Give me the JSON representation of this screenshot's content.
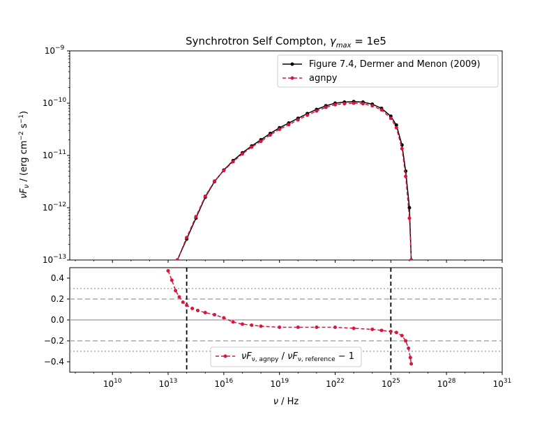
{
  "chart_data": {
    "type": "line",
    "title": "Synchrotron Self Compton, γ_max = 1e5",
    "xlabel": "ν / Hz",
    "xscale": "log",
    "xlim_exponent": [
      7.7,
      31
    ],
    "x_tick_exponents": [
      10,
      13,
      16,
      19,
      22,
      25,
      28,
      31
    ],
    "top": {
      "ylabel": "νF_ν / (erg cm⁻² s⁻¹)",
      "yscale": "log",
      "ylim_exponent": [
        -13,
        -9
      ],
      "y_tick_exponents": [
        -13,
        -12,
        -11,
        -10,
        -9
      ],
      "legend_location": "upper right",
      "series": [
        {
          "name": "Figure 7.4, Dermer and Menon (2009)",
          "color": "#000000",
          "marker": "circle",
          "linestyle": "solid",
          "points_log10": [
            [
              13.5,
              -13.0
            ],
            [
              14.0,
              -12.6
            ],
            [
              14.5,
              -12.2
            ],
            [
              15.0,
              -11.8
            ],
            [
              15.5,
              -11.5
            ],
            [
              16.0,
              -11.28
            ],
            [
              16.5,
              -11.1
            ],
            [
              17.0,
              -10.95
            ],
            [
              17.5,
              -10.82
            ],
            [
              18.0,
              -10.7
            ],
            [
              18.5,
              -10.58
            ],
            [
              19.0,
              -10.47
            ],
            [
              19.5,
              -10.38
            ],
            [
              20.0,
              -10.29
            ],
            [
              20.5,
              -10.2
            ],
            [
              21.0,
              -10.12
            ],
            [
              21.5,
              -10.05
            ],
            [
              22.0,
              -10.0
            ],
            [
              22.5,
              -9.98
            ],
            [
              23.0,
              -9.97
            ],
            [
              23.5,
              -9.98
            ],
            [
              24.0,
              -10.02
            ],
            [
              24.5,
              -10.1
            ],
            [
              25.0,
              -10.25
            ],
            [
              25.3,
              -10.42
            ],
            [
              25.6,
              -10.8
            ],
            [
              25.8,
              -11.3
            ],
            [
              26.0,
              -12.0
            ],
            [
              26.1,
              -13.0
            ]
          ]
        },
        {
          "name": "agnpy",
          "color": "#dc143c",
          "marker": "circle",
          "linestyle": "dashed",
          "points_log10": [
            [
              13.5,
              -13.0
            ],
            [
              14.0,
              -12.57
            ],
            [
              14.5,
              -12.17
            ],
            [
              15.0,
              -11.78
            ],
            [
              15.5,
              -11.49
            ],
            [
              16.0,
              -11.29
            ],
            [
              16.5,
              -11.12
            ],
            [
              17.0,
              -10.97
            ],
            [
              17.5,
              -10.84
            ],
            [
              18.0,
              -10.73
            ],
            [
              18.5,
              -10.61
            ],
            [
              19.0,
              -10.5
            ],
            [
              19.5,
              -10.41
            ],
            [
              20.0,
              -10.32
            ],
            [
              20.5,
              -10.23
            ],
            [
              21.0,
              -10.15
            ],
            [
              21.5,
              -10.08
            ],
            [
              22.0,
              -10.03
            ],
            [
              22.5,
              -10.01
            ],
            [
              23.0,
              -10.0
            ],
            [
              23.5,
              -10.01
            ],
            [
              24.0,
              -10.05
            ],
            [
              24.5,
              -10.13
            ],
            [
              25.0,
              -10.29
            ],
            [
              25.3,
              -10.47
            ],
            [
              25.6,
              -10.87
            ],
            [
              25.8,
              -11.4
            ],
            [
              26.0,
              -12.2
            ],
            [
              26.1,
              -13.0
            ]
          ]
        }
      ]
    },
    "bottom": {
      "yscale": "linear",
      "ylim": [
        -0.5,
        0.5
      ],
      "y_ticks": [
        0.4,
        0.2,
        0.0,
        -0.2,
        -0.4
      ],
      "y_tick_labels": [
        "0.4",
        "0.2",
        "0.0",
        "−0.2",
        "−0.4"
      ],
      "reference_lines": [
        {
          "y": 0.0,
          "style": "solid",
          "color": "#aaaaaa"
        },
        {
          "y": 0.2,
          "style": "dashed",
          "color": "#aaaaaa"
        },
        {
          "y": -0.2,
          "style": "dashed",
          "color": "#aaaaaa"
        },
        {
          "y": 0.3,
          "style": "dotted",
          "color": "#aaaaaa"
        },
        {
          "y": -0.3,
          "style": "dotted",
          "color": "#aaaaaa"
        }
      ],
      "vertical_lines_exponent": [
        14.0,
        25.0
      ],
      "legend_location": "lower center",
      "series": [
        {
          "name": "νF_ν,agnpy / νF_ν,reference − 1",
          "color": "#dc143c",
          "marker": "circle",
          "linestyle": "dashed",
          "points": [
            [
              13.0,
              0.47
            ],
            [
              13.2,
              0.38
            ],
            [
              13.4,
              0.28
            ],
            [
              13.6,
              0.22
            ],
            [
              13.8,
              0.17
            ],
            [
              14.0,
              0.14
            ],
            [
              14.3,
              0.11
            ],
            [
              14.6,
              0.09
            ],
            [
              15.0,
              0.07
            ],
            [
              15.5,
              0.05
            ],
            [
              16.0,
              0.02
            ],
            [
              16.5,
              -0.02
            ],
            [
              17.0,
              -0.04
            ],
            [
              17.5,
              -0.05
            ],
            [
              18.0,
              -0.06
            ],
            [
              19.0,
              -0.07
            ],
            [
              20.0,
              -0.07
            ],
            [
              21.0,
              -0.07
            ],
            [
              22.0,
              -0.07
            ],
            [
              23.0,
              -0.08
            ],
            [
              24.0,
              -0.09
            ],
            [
              24.5,
              -0.1
            ],
            [
              25.0,
              -0.11
            ],
            [
              25.3,
              -0.12
            ],
            [
              25.6,
              -0.15
            ],
            [
              25.8,
              -0.2
            ],
            [
              25.95,
              -0.27
            ],
            [
              26.05,
              -0.36
            ],
            [
              26.1,
              -0.42
            ]
          ]
        }
      ]
    }
  }
}
